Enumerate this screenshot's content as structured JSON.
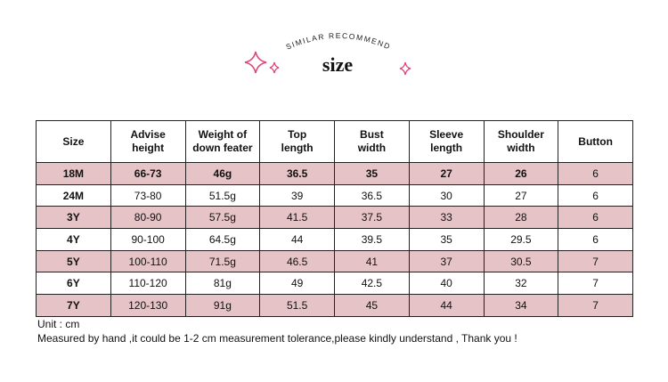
{
  "header": {
    "arc_text": "SIMILAR RECOMMEND",
    "title": "size"
  },
  "table": {
    "columns": [
      [
        "Size"
      ],
      [
        "Advise",
        "height"
      ],
      [
        "Weight of",
        "down feater"
      ],
      [
        "Top",
        "length"
      ],
      [
        "Bust",
        "width"
      ],
      [
        "Sleeve",
        "length"
      ],
      [
        "Shoulder",
        "width"
      ],
      [
        "Button"
      ]
    ],
    "rows": [
      [
        "18M",
        "66-73",
        "46g",
        "36.5",
        "35",
        "27",
        "26",
        "6"
      ],
      [
        "24M",
        "73-80",
        "51.5g",
        "39",
        "36.5",
        "30",
        "27",
        "6"
      ],
      [
        "3Y",
        "80-90",
        "57.5g",
        "41.5",
        "37.5",
        "33",
        "28",
        "6"
      ],
      [
        "4Y",
        "90-100",
        "64.5g",
        "44",
        "39.5",
        "35",
        "29.5",
        "6"
      ],
      [
        "5Y",
        "100-110",
        "71.5g",
        "46.5",
        "41",
        "37",
        "30.5",
        "7"
      ],
      [
        "6Y",
        "110-120",
        "81g",
        "49",
        "42.5",
        "40",
        "32",
        "7"
      ],
      [
        "7Y",
        "120-130",
        "91g",
        "51.5",
        "45",
        "44",
        "34",
        "7"
      ]
    ]
  },
  "notes": [
    "Unit : cm",
    "Measured by hand ,it could be 1-2 cm measurement tolerance,please kindly understand , Thank you !"
  ]
}
